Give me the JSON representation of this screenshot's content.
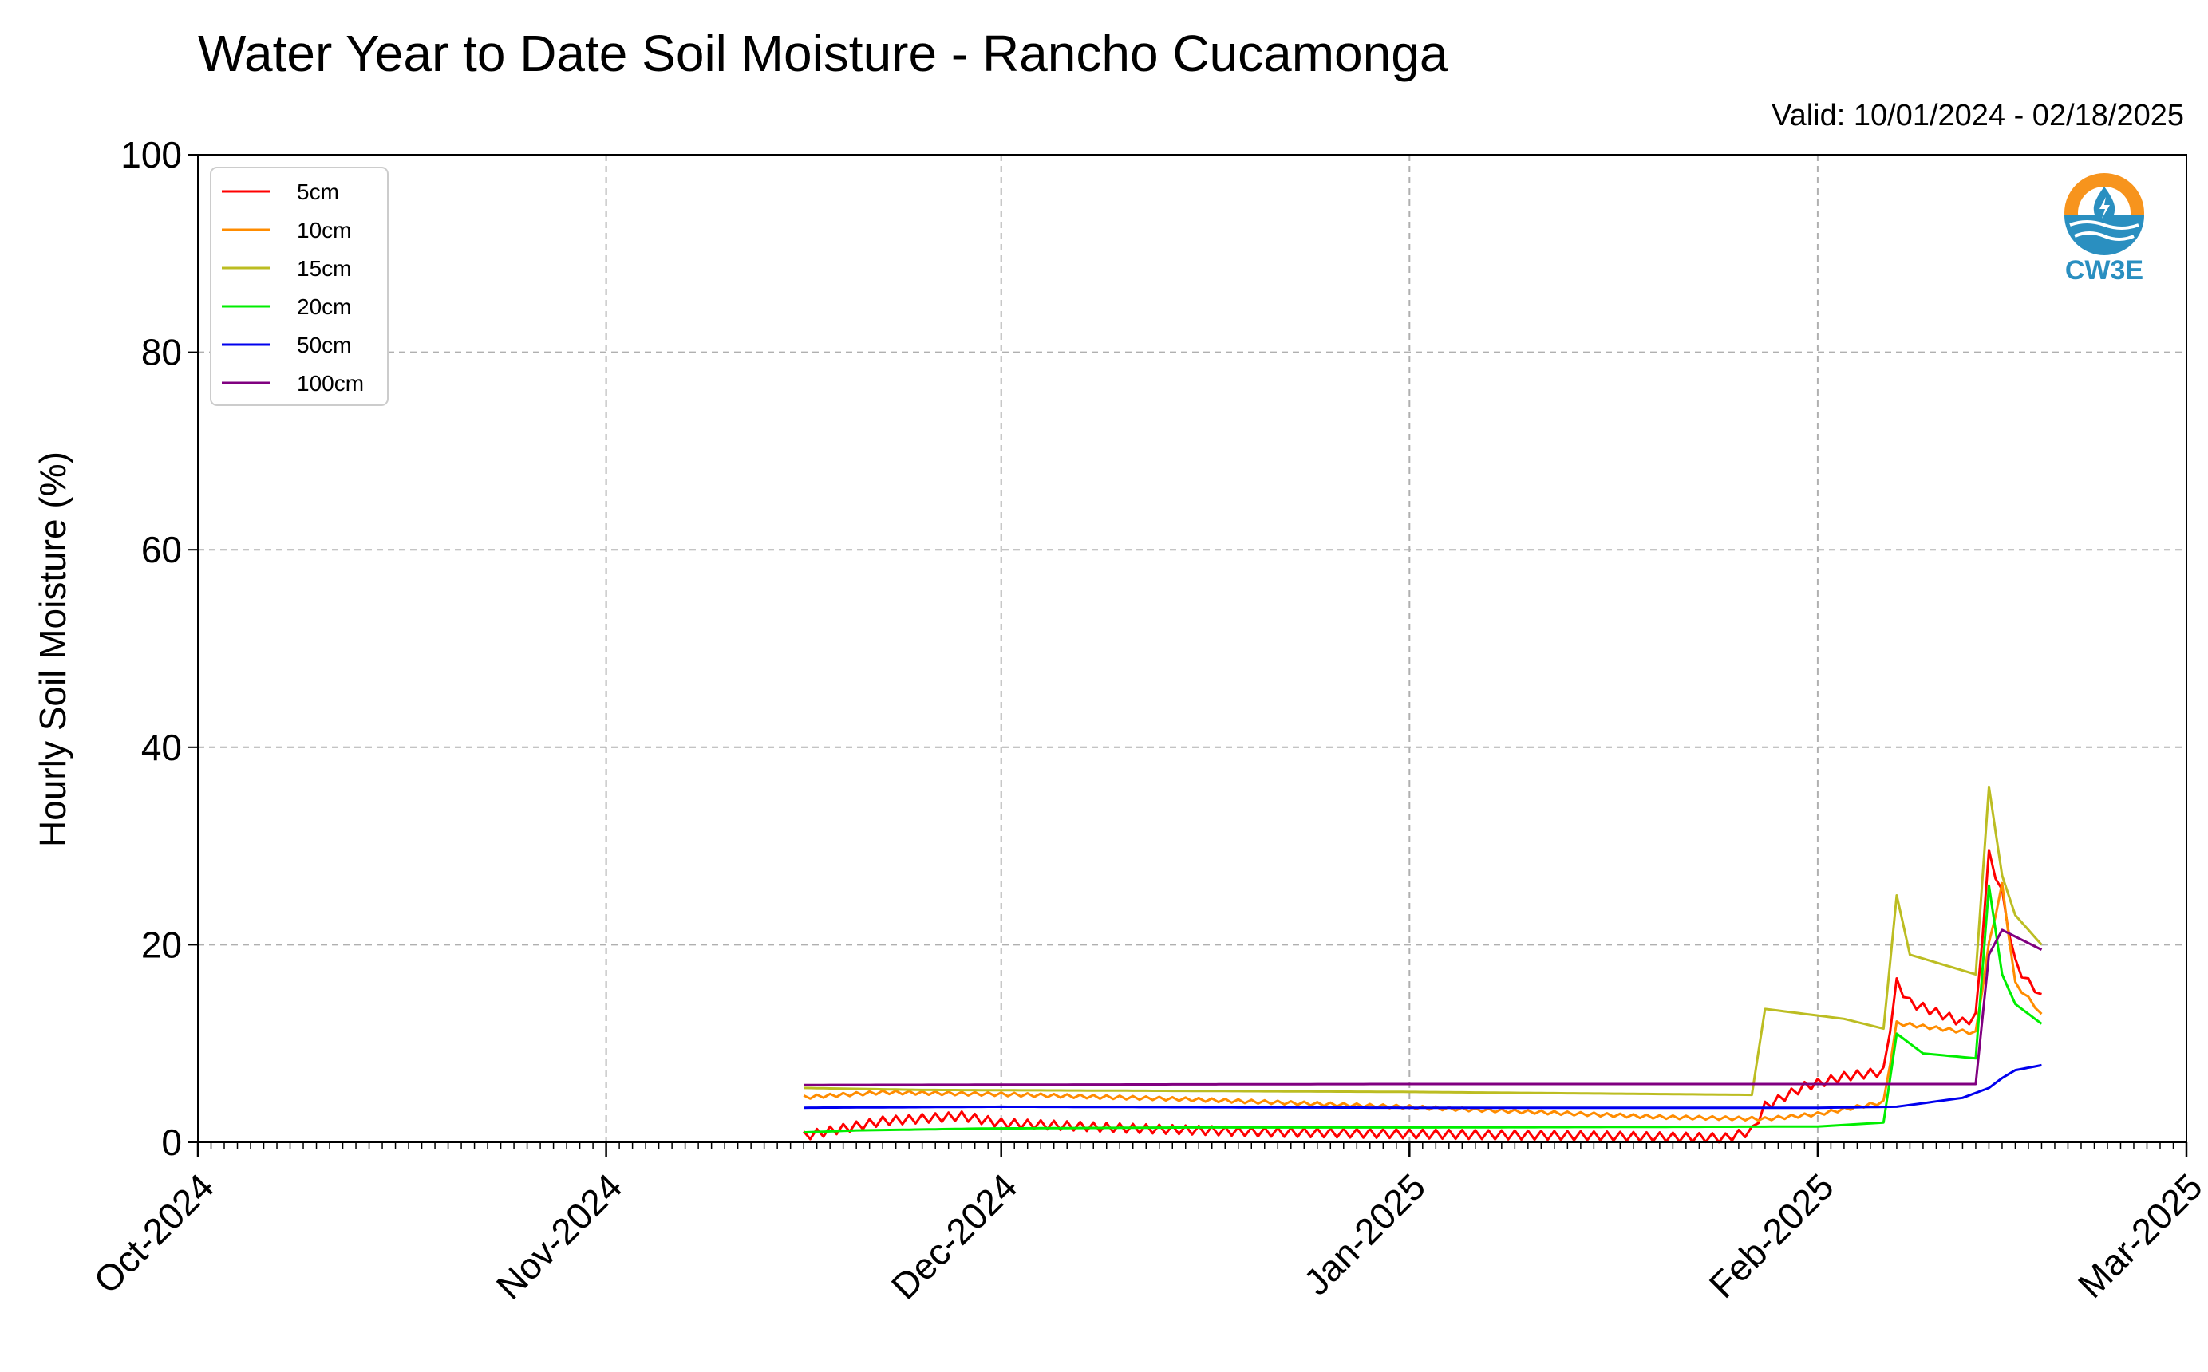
{
  "title": "Water Year to Date Soil Moisture - Rancho Cucamonga",
  "subtitle": "Valid: 10/01/2024 - 02/18/2025",
  "logo_text": "CW3E",
  "chart_data": {
    "type": "line",
    "title": "Water Year to Date Soil Moisture - Rancho Cucamonga",
    "xlabel": "",
    "ylabel": "Hourly Soil Moisture (%)",
    "xlim": [
      "2024-10-01",
      "2025-03-01"
    ],
    "ylim": [
      0,
      100
    ],
    "x_ticks": [
      "Oct-2024",
      "Nov-2024",
      "Dec-2024",
      "Jan-2025",
      "Feb-2025",
      "Mar-2025"
    ],
    "y_ticks": [
      0,
      20,
      40,
      60,
      80,
      100
    ],
    "grid": true,
    "legend_position": "top-left",
    "series": [
      {
        "name": "5cm",
        "color": "#ff0000",
        "points": [
          [
            "2024-11-16",
            0.5
          ],
          [
            "2024-11-22",
            2.0
          ],
          [
            "2024-11-28",
            2.5
          ],
          [
            "2024-12-01",
            1.8
          ],
          [
            "2024-12-10",
            1.3
          ],
          [
            "2024-12-20",
            0.9
          ],
          [
            "2025-01-01",
            0.7
          ],
          [
            "2025-01-15",
            0.5
          ],
          [
            "2025-01-25",
            0.3
          ],
          [
            "2025-01-27",
            1.0
          ],
          [
            "2025-01-28",
            3.5
          ],
          [
            "2025-01-31",
            5.5
          ],
          [
            "2025-02-03",
            6.5
          ],
          [
            "2025-02-06",
            7.0
          ],
          [
            "2025-02-07",
            16.0
          ],
          [
            "2025-02-08",
            14.0
          ],
          [
            "2025-02-10",
            13.0
          ],
          [
            "2025-02-12",
            12.0
          ],
          [
            "2025-02-13",
            12.5
          ],
          [
            "2025-02-14",
            29.0
          ],
          [
            "2025-02-15",
            25.0
          ],
          [
            "2025-02-16",
            18.0
          ],
          [
            "2025-02-17",
            16.0
          ],
          [
            "2025-02-18",
            15.0
          ]
        ]
      },
      {
        "name": "10cm",
        "color": "#ff8c00",
        "points": [
          [
            "2024-11-16",
            4.5
          ],
          [
            "2024-11-22",
            5.0
          ],
          [
            "2024-12-01",
            4.8
          ],
          [
            "2024-12-15",
            4.3
          ],
          [
            "2025-01-01",
            3.5
          ],
          [
            "2025-01-20",
            2.5
          ],
          [
            "2025-01-28",
            2.3
          ],
          [
            "2025-02-01",
            2.8
          ],
          [
            "2025-02-06",
            4.0
          ],
          [
            "2025-02-07",
            12.0
          ],
          [
            "2025-02-10",
            11.5
          ],
          [
            "2025-02-13",
            11.0
          ],
          [
            "2025-02-14",
            20.0
          ],
          [
            "2025-02-15",
            26.0
          ],
          [
            "2025-02-16",
            16.0
          ],
          [
            "2025-02-18",
            13.0
          ]
        ]
      },
      {
        "name": "15cm",
        "color": "#bcbd22",
        "points": [
          [
            "2024-11-16",
            5.5
          ],
          [
            "2024-11-25",
            5.3
          ],
          [
            "2024-12-15",
            5.2
          ],
          [
            "2025-01-01",
            5.1
          ],
          [
            "2025-01-27",
            4.8
          ],
          [
            "2025-01-28",
            13.5
          ],
          [
            "2025-02-03",
            12.5
          ],
          [
            "2025-02-06",
            11.5
          ],
          [
            "2025-02-07",
            25.0
          ],
          [
            "2025-02-08",
            19.0
          ],
          [
            "2025-02-13",
            17.0
          ],
          [
            "2025-02-14",
            36.0
          ],
          [
            "2025-02-15",
            27.0
          ],
          [
            "2025-02-16",
            23.0
          ],
          [
            "2025-02-18",
            20.0
          ]
        ]
      },
      {
        "name": "20cm",
        "color": "#00ee00",
        "points": [
          [
            "2024-11-16",
            1.0
          ],
          [
            "2024-11-20",
            1.2
          ],
          [
            "2024-11-30",
            1.4
          ],
          [
            "2024-12-15",
            1.5
          ],
          [
            "2025-01-01",
            1.5
          ],
          [
            "2025-02-01",
            1.6
          ],
          [
            "2025-02-06",
            2.0
          ],
          [
            "2025-02-07",
            11.0
          ],
          [
            "2025-02-09",
            9.0
          ],
          [
            "2025-02-13",
            8.5
          ],
          [
            "2025-02-14",
            26.0
          ],
          [
            "2025-02-15",
            17.0
          ],
          [
            "2025-02-16",
            14.0
          ],
          [
            "2025-02-18",
            12.0
          ]
        ]
      },
      {
        "name": "50cm",
        "color": "#0000ee",
        "points": [
          [
            "2024-11-16",
            3.5
          ],
          [
            "2024-12-01",
            3.6
          ],
          [
            "2025-01-01",
            3.5
          ],
          [
            "2025-02-01",
            3.5
          ],
          [
            "2025-02-07",
            3.6
          ],
          [
            "2025-02-12",
            4.5
          ],
          [
            "2025-02-13",
            5.0
          ],
          [
            "2025-02-14",
            5.5
          ],
          [
            "2025-02-15",
            6.5
          ],
          [
            "2025-02-16",
            7.3
          ],
          [
            "2025-02-18",
            7.8
          ]
        ]
      },
      {
        "name": "100cm",
        "color": "#800080",
        "points": [
          [
            "2024-11-16",
            5.8
          ],
          [
            "2025-01-01",
            5.9
          ],
          [
            "2025-02-13",
            5.9
          ],
          [
            "2025-02-14",
            19.0
          ],
          [
            "2025-02-15",
            21.5
          ],
          [
            "2025-02-18",
            19.5
          ]
        ]
      }
    ]
  }
}
